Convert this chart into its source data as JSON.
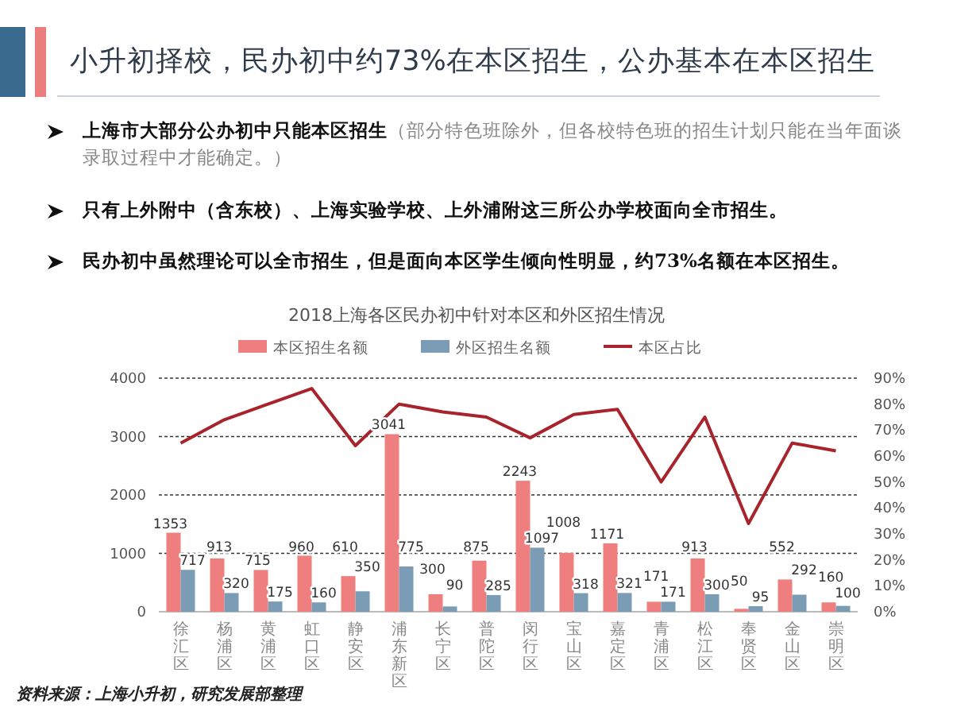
{
  "chart_data": {
    "type": "bar",
    "title": "小升初择校，民办初中约73%在本区招生，公办基本在本区招生",
    "subtitle": "2018上海各区民办初中针对本区和外区招生情况",
    "annotations": [
      "**上海市大部分公办初中只能本区招生**（部分特色班除外，但各校特色班的招生计划只能在当年面谈录取过程中才能确定。）",
      "只有上外附中（含东校）、上海实验学校、上外浦附这三所公办学校面向全市招生。",
      "民办初中虽然理论可以全市招生，但是面向本区学生倾向性明显，约73%名额在本区招生。",
      "资料来源：上海小升初，研究发展部整理"
    ],
    "categories": [
      "徐汇区",
      "杨浦区",
      "黄浦区",
      "虹口区",
      "静安区",
      "浦东新区",
      "长宁区",
      "普陀区",
      "闵行区",
      "宝山区",
      "嘉定区",
      "青浦区",
      "松江区",
      "奉贤区",
      "金山区",
      "崇明区"
    ],
    "series": [
      {
        "name": "本区招生名额",
        "color": "#ef7f7f",
        "values": [
          1353,
          913,
          715,
          960,
          610,
          3041,
          300,
          875,
          2243,
          1008,
          1171,
          171,
          913,
          50,
          552,
          160
        ],
        "value_labels": [
          "1353",
          "913",
          "715",
          "960",
          "610",
          "3041",
          "300",
          "875",
          "2243",
          "1008",
          "1171",
          "171",
          "913",
          "50",
          "552",
          "160"
        ]
      },
      {
        "name": "外区招生名额",
        "color": "#7b9cb5",
        "values": [
          717,
          320,
          175,
          160,
          350,
          775,
          90,
          285,
          1097,
          318,
          321,
          171,
          300,
          95,
          292,
          100
        ],
        "value_labels": [
          "717",
          "320",
          "175",
          "160",
          "350",
          "775",
          "90",
          "285",
          "1097",
          "318",
          "321",
          "171",
          "300",
          "95",
          "292",
          "100"
        ]
      },
      {
        "name": "本区占比",
        "type": "line",
        "axis": "y2",
        "color": "#a8242c",
        "values": [
          65,
          74,
          80,
          86,
          64,
          80,
          77,
          75,
          67,
          76,
          78,
          50,
          75,
          34,
          65,
          62
        ]
      }
    ],
    "ylim": [
      0,
      4000
    ],
    "yticks": [
      0,
      1000,
      2000,
      3000,
      4000
    ],
    "y2lim": [
      0,
      90
    ],
    "y2ticks": [
      {
        "value": 0,
        "label": "0%"
      },
      {
        "value": 10,
        "label": "10%"
      },
      {
        "value": 20,
        "label": "20%"
      },
      {
        "value": 30,
        "label": "30%"
      },
      {
        "value": 40,
        "label": "40%"
      },
      {
        "value": 50,
        "label": "50%"
      },
      {
        "value": 60,
        "label": "60%"
      },
      {
        "value": 70,
        "label": "70%"
      },
      {
        "value": 80,
        "label": "80%"
      },
      {
        "value": 90,
        "label": "90%"
      }
    ],
    "grid": "y",
    "legend": "top",
    "marker": "none",
    "line_style": "solid"
  }
}
